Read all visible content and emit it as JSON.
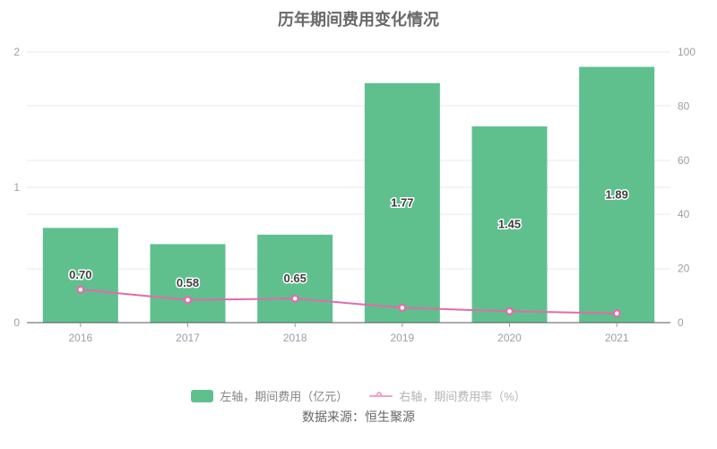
{
  "header": {
    "title": "历年期间费用变化情况"
  },
  "chart_data": {
    "type": "bar",
    "title": "历年期间费用变化情况",
    "categories": [
      "2016",
      "2017",
      "2018",
      "2019",
      "2020",
      "2021"
    ],
    "series": [
      {
        "name": "左轴，期间费用（亿元）",
        "type": "bar",
        "yaxis": "left",
        "values": [
          0.7,
          0.58,
          0.65,
          1.77,
          1.45,
          1.89
        ],
        "data_labels": [
          "0.70",
          "0.58",
          "0.65",
          "1.77",
          "1.45",
          "1.89"
        ],
        "color": "#5fc08e"
      },
      {
        "name": "右轴，期间费用率（%）",
        "type": "line",
        "yaxis": "right",
        "values": [
          12.2,
          8.4,
          8.9,
          5.5,
          4.2,
          3.4
        ],
        "color": "#e46aab",
        "marker": "hollow-circle"
      }
    ],
    "left_axis": {
      "min": 0,
      "max": 2,
      "ticks": [
        0,
        1,
        2
      ]
    },
    "right_axis": {
      "min": 0,
      "max": 100,
      "ticks": [
        0,
        20,
        40,
        60,
        80,
        100
      ]
    },
    "grid": true,
    "legend_position": "bottom"
  },
  "legend": {
    "bar_swatch_color": "#5fc08e",
    "line_icon_color": "#f0a2c9"
  },
  "colors": {
    "grid": "#e7eaf2",
    "axis": "#53575e",
    "tick": "#999999",
    "axis_text": "#9aa0a6",
    "title_text": "#696969"
  },
  "footer": {
    "source": "数据来源：恒生聚源"
  }
}
